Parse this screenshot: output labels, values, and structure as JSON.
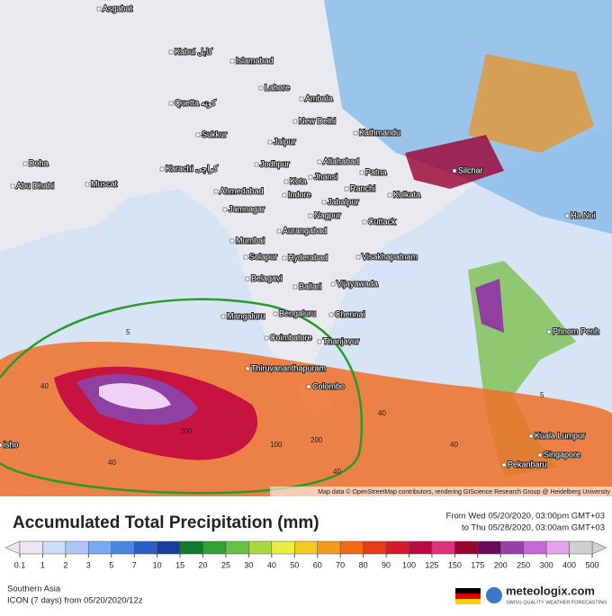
{
  "map": {
    "cities": [
      "Asgabat",
      "Kabul کابل",
      "Islamabad",
      "Lahore",
      "Quetta کوټه",
      "Ambala",
      "New Delhi",
      "Sukkur",
      "Jaipur",
      "Kathmandu",
      "Allahabad",
      "Jodhpur",
      "Karachi كراچى",
      "Patna",
      "Silchar",
      "Kota",
      "Jhansi",
      "Ahmedabad",
      "Indore",
      "Ranchi",
      "Kolkata",
      "Doha",
      "Abu Dhabi",
      "Muscat",
      "Jabalpur",
      "Jamnagar",
      "Nagpur",
      "Cuttack",
      "Ha Noi",
      "Mumbai",
      "Aurangabad",
      "Solapur",
      "Hyderabad",
      "Visakhapatnam",
      "Belagavi",
      "Ballari",
      "Vijayawada",
      "Mangaluru",
      "Bengaluru",
      "Chennai",
      "Phnom Penh",
      "Coimbatore",
      "Thanjavur",
      "Thiruvananthapuram",
      "Colombo",
      "Kuala Lumpur",
      "Singapore",
      "Pekanbaru",
      "isho"
    ],
    "contour_labels": [
      "40",
      "200",
      "100",
      "40",
      "5",
      "40",
      "40",
      "200",
      "40",
      "5"
    ],
    "attribution": "Map data © OpenStreetMap contributors, rendering GIScience Research Group @ Heidelberg University"
  },
  "legend": {
    "title": "Accumulated Total Precipitation (mm)",
    "from": "From Wed 05/20/2020, 03:00pm GMT+03",
    "to": "to Thu 05/28/2020, 03:00am GMT+03",
    "ticks": [
      0.1,
      1,
      2,
      3,
      5,
      7,
      10,
      15,
      20,
      25,
      30,
      40,
      50,
      60,
      70,
      80,
      90,
      100,
      125,
      150,
      175,
      200,
      250,
      300,
      400,
      500
    ],
    "colors": [
      "#ece6f4",
      "#cfdcf6",
      "#abc6f4",
      "#7aaaf0",
      "#4a86e0",
      "#2a5ec6",
      "#1a3c9e",
      "#107a30",
      "#32a036",
      "#66c044",
      "#a8d842",
      "#ecec40",
      "#f4c824",
      "#f49a1c",
      "#f06a1a",
      "#e63c1a",
      "#d41a2c",
      "#b80a3e",
      "#e0307a",
      "#98062e",
      "#6c0a5c",
      "#9444a6",
      "#c46ad6",
      "#e4a2ea",
      "#cfcfcf"
    ]
  },
  "footer": {
    "region": "Southern Asia",
    "model": "ICON (7 days) from 05/20/2020/12z",
    "brand": "meteologix.com",
    "tagline": "SWISS QUALITY WEATHER FORECASTING"
  }
}
